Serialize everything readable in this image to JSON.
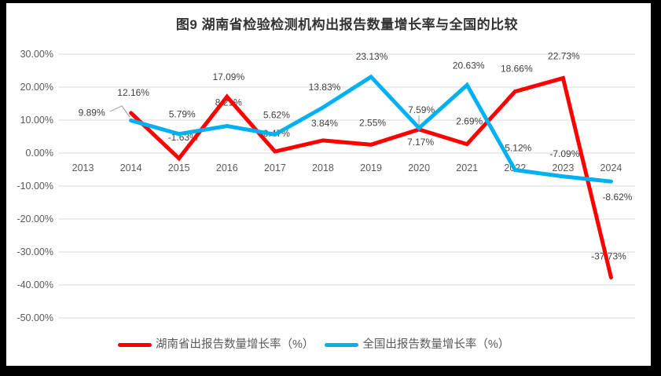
{
  "chart_data": {
    "type": "line",
    "title": "图9 湖南省检验检测机构出报告数量增长率与全国的比较",
    "categories": [
      "2013",
      "2014",
      "2015",
      "2016",
      "2017",
      "2018",
      "2019",
      "2020",
      "2021",
      "2022",
      "2023",
      "2024"
    ],
    "ylim": [
      -50,
      30
    ],
    "ytick_step": 10,
    "grid": true,
    "legend_position": "bottom",
    "y_ticks": [
      {
        "value": 30,
        "label": "30.00%"
      },
      {
        "value": 20,
        "label": "20.00%"
      },
      {
        "value": 10,
        "label": "10.00%"
      },
      {
        "value": 0,
        "label": "0.00%"
      },
      {
        "value": -10,
        "label": "-10.00%"
      },
      {
        "value": -20,
        "label": "-20.00%"
      },
      {
        "value": -30,
        "label": "-30.00%"
      },
      {
        "value": -40,
        "label": "-40.00%"
      },
      {
        "value": -50,
        "label": "-50.00%"
      }
    ],
    "series": [
      {
        "name": "湖南省出报告数量增长率（%）",
        "color": "#ff0000",
        "values": [
          null,
          12.16,
          -1.63,
          17.09,
          0.47,
          3.84,
          2.55,
          7.17,
          2.69,
          18.66,
          22.73,
          -37.73
        ],
        "labels": [
          null,
          "12.16%",
          "-1.63%",
          "17.09%",
          "0.47%",
          "3.84%",
          "2.55%",
          "7.17%",
          "2.69%",
          "18.66%",
          "22.73%",
          "-37.73%"
        ]
      },
      {
        "name": "全国出报告数量增长率（%）",
        "color": "#00b0f0",
        "values": [
          null,
          9.89,
          5.79,
          8.21,
          5.62,
          13.83,
          23.13,
          7.59,
          20.63,
          -5.12,
          -7.09,
          -8.62
        ],
        "labels": [
          null,
          "9.89%",
          "5.79%",
          "8.21%",
          "5.62%",
          "13.83%",
          "23.13%",
          "7.59%",
          "20.63%",
          "-5.12%",
          "-7.09%",
          "-8.62%"
        ]
      }
    ]
  },
  "colors": {
    "frame_background": "#000000",
    "plot_background": "#ffffff",
    "gridline": "#d9d9d9",
    "tick_text": "#595959",
    "data_label_text": "#404040",
    "leader_line": "#a6a6a6",
    "title_text": "#333333"
  }
}
